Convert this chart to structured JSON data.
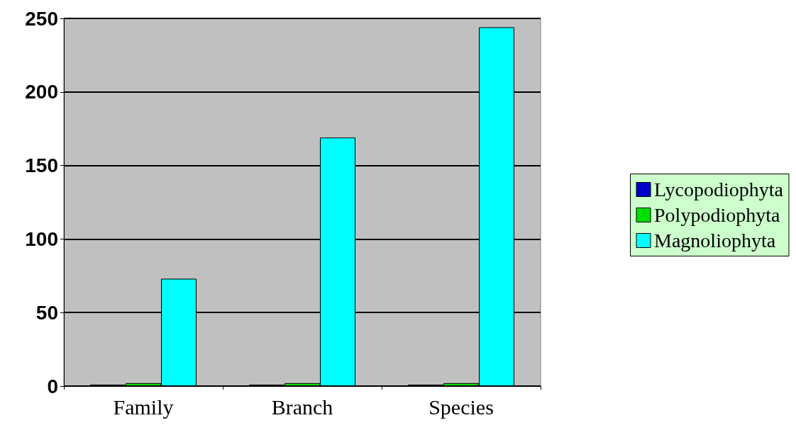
{
  "chart_data": {
    "type": "bar",
    "categories": [
      "Family",
      "Branch",
      "Species"
    ],
    "series": [
      {
        "name": "Lycopodiophyta",
        "color": "#0000cc",
        "values": [
          1,
          1,
          1
        ]
      },
      {
        "name": "Polypodiophyta",
        "color": "#00e000",
        "values": [
          2,
          2,
          2
        ]
      },
      {
        "name": "Magnoliophyta",
        "color": "#00ffff",
        "values": [
          73,
          169,
          244
        ]
      }
    ],
    "ylim": [
      0,
      250
    ],
    "yticks": [
      0,
      50,
      100,
      150,
      200,
      250
    ],
    "grid": "y",
    "legend": "right"
  }
}
